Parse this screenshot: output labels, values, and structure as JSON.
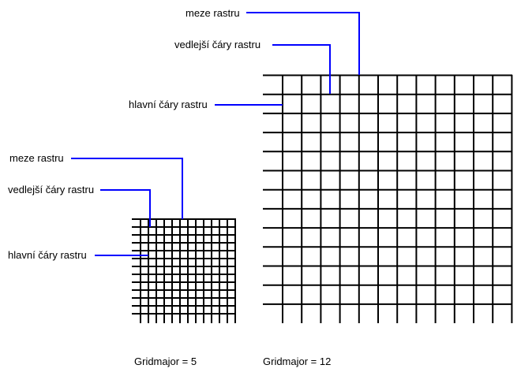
{
  "large": {
    "limit_label": "meze rastru",
    "minor_label": "vedlejší čáry rastru",
    "major_label": "hlavní čáry rastru",
    "caption": "Gridmajor = 12"
  },
  "small": {
    "limit_label": "meze rastru",
    "minor_label": "vedlejší čáry rastru",
    "major_label": "hlavní čáry rastru",
    "caption": "Gridmajor = 5"
  },
  "colors": {
    "leader": "#0000ff",
    "grid": "#000000"
  }
}
